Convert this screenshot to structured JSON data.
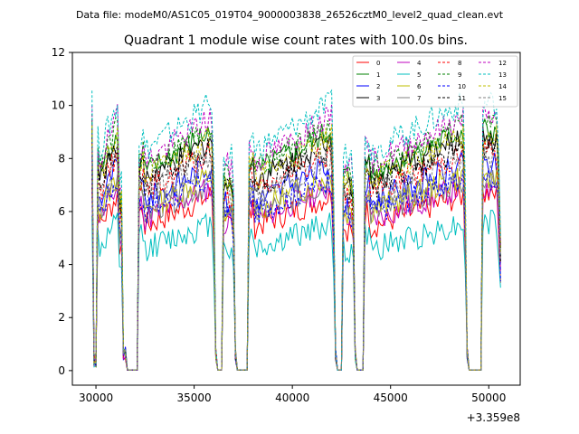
{
  "figure": {
    "suptitle": "Data file: modeM0/AS1C05_019T04_9000003838_26526cztM0_level2_quad_clean.evt"
  },
  "chart_data": {
    "type": "line",
    "title": "Quadrant 1 module wise count rates with 100.0s bins.",
    "xlabel": "",
    "ylabel": "",
    "offset_label": "+3.359e8",
    "xlim": [
      28800,
      51600
    ],
    "ylim": [
      -0.55,
      12
    ],
    "xticks": [
      30000,
      35000,
      40000,
      45000,
      50000
    ],
    "xtick_labels": [
      "30000",
      "35000",
      "40000",
      "45000",
      "50000"
    ],
    "yticks": [
      0,
      2,
      4,
      6,
      8,
      10,
      12
    ],
    "ytick_labels": [
      "0",
      "2",
      "4",
      "6",
      "8",
      "10",
      "12"
    ],
    "grid": false,
    "legend_position": "upper-right",
    "legend_columns": 4,
    "segments": [
      {
        "start": 29800,
        "end": 30000,
        "pattern": "edge"
      },
      {
        "start": 30100,
        "end": 31100,
        "pattern": "rise"
      },
      {
        "start": 31200,
        "end": 31500,
        "pattern": "drop"
      },
      {
        "start": 31600,
        "end": 32100,
        "pattern": "zero"
      },
      {
        "start": 32200,
        "end": 35900,
        "pattern": "rise"
      },
      {
        "start": 36000,
        "end": 36100,
        "pattern": "drop"
      },
      {
        "start": 36200,
        "end": 36400,
        "pattern": "zero"
      },
      {
        "start": 36500,
        "end": 36900,
        "pattern": "short"
      },
      {
        "start": 37000,
        "end": 37100,
        "pattern": "drop"
      },
      {
        "start": 37200,
        "end": 37700,
        "pattern": "zero"
      },
      {
        "start": 37800,
        "end": 42000,
        "pattern": "rise"
      },
      {
        "start": 42100,
        "end": 42200,
        "pattern": "drop"
      },
      {
        "start": 42300,
        "end": 42500,
        "pattern": "zero"
      },
      {
        "start": 42600,
        "end": 43000,
        "pattern": "short"
      },
      {
        "start": 43100,
        "end": 43200,
        "pattern": "drop"
      },
      {
        "start": 43300,
        "end": 43600,
        "pattern": "zero"
      },
      {
        "start": 43700,
        "end": 48700,
        "pattern": "rise"
      },
      {
        "start": 48800,
        "end": 48900,
        "pattern": "drop"
      },
      {
        "start": 49000,
        "end": 49600,
        "pattern": "zero"
      },
      {
        "start": 49700,
        "end": 50600,
        "pattern": "end"
      }
    ],
    "series": [
      {
        "name": "0",
        "color": "#ff0000",
        "dash": "solid",
        "level": 6.3
      },
      {
        "name": "1",
        "color": "#008000",
        "dash": "solid",
        "level": 8.6
      },
      {
        "name": "2",
        "color": "#0000ff",
        "dash": "solid",
        "level": 7.4
      },
      {
        "name": "3",
        "color": "#000000",
        "dash": "solid",
        "level": 8.3
      },
      {
        "name": "4",
        "color": "#bf00bf",
        "dash": "solid",
        "level": 6.6
      },
      {
        "name": "5",
        "color": "#00bfbf",
        "dash": "solid",
        "level": 5.3
      },
      {
        "name": "6",
        "color": "#bfbf00",
        "dash": "solid",
        "level": 7.0
      },
      {
        "name": "7",
        "color": "#808080",
        "dash": "solid",
        "level": 6.8
      },
      {
        "name": "8",
        "color": "#ff0000",
        "dash": "dashed",
        "level": 7.8
      },
      {
        "name": "9",
        "color": "#008000",
        "dash": "dashed",
        "level": 8.8
      },
      {
        "name": "10",
        "color": "#0000ff",
        "dash": "dashed",
        "level": 6.9
      },
      {
        "name": "11",
        "color": "#000000",
        "dash": "dashed",
        "level": 8.0
      },
      {
        "name": "12",
        "color": "#bf00bf",
        "dash": "dashed",
        "level": 9.1
      },
      {
        "name": "13",
        "color": "#00bfbf",
        "dash": "dashed",
        "level": 9.6
      },
      {
        "name": "14",
        "color": "#bfbf00",
        "dash": "dashed",
        "level": 8.4
      },
      {
        "name": "15",
        "color": "#808080",
        "dash": "dashed",
        "level": 7.6
      }
    ]
  }
}
